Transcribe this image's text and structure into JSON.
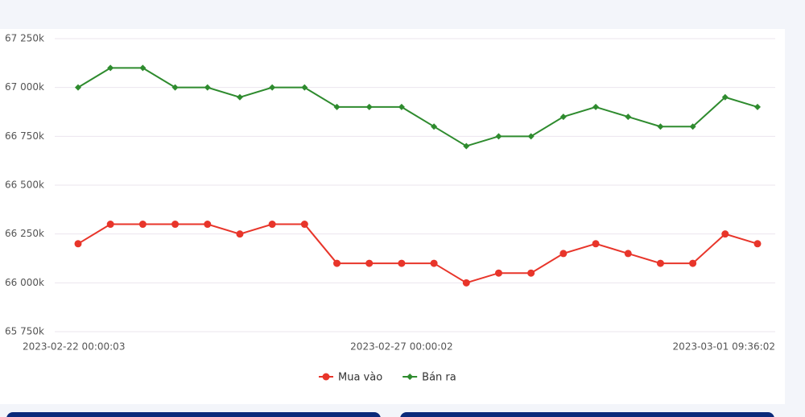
{
  "chart_data": {
    "type": "line",
    "categories": [
      "2023-02-22 00:00:03",
      null,
      null,
      null,
      null,
      null,
      null,
      null,
      null,
      null,
      "2023-02-27 00:00:02",
      null,
      null,
      null,
      null,
      null,
      null,
      null,
      null,
      null,
      null,
      "2023-03-01 09:36:02"
    ],
    "series": [
      {
        "name": "Mua vào",
        "color": "#e8352a",
        "marker": "circle",
        "values": [
          66200,
          66300,
          66300,
          66300,
          66300,
          66250,
          66300,
          66300,
          66100,
          66100,
          66100,
          66100,
          66000,
          66050,
          66050,
          66150,
          66200,
          66150,
          66100,
          66100,
          66250,
          66200
        ]
      },
      {
        "name": "Bán ra",
        "color": "#2e8b2e",
        "marker": "diamond",
        "values": [
          67000,
          67100,
          67100,
          67000,
          67000,
          66950,
          67000,
          67000,
          66900,
          66900,
          66900,
          66800,
          66700,
          66750,
          66750,
          66850,
          66900,
          66850,
          66800,
          66800,
          66950,
          66900
        ]
      }
    ],
    "ylim": [
      65750,
      67250
    ],
    "yticks": [
      {
        "value": 65750,
        "label": "65 750k"
      },
      {
        "value": 66000,
        "label": "66 000k"
      },
      {
        "value": 66250,
        "label": "66 250k"
      },
      {
        "value": 66500,
        "label": "66 500k"
      },
      {
        "value": 66750,
        "label": "66 750k"
      },
      {
        "value": 67000,
        "label": "67 000k"
      },
      {
        "value": 67250,
        "label": "67 250k"
      }
    ],
    "grid": true
  }
}
